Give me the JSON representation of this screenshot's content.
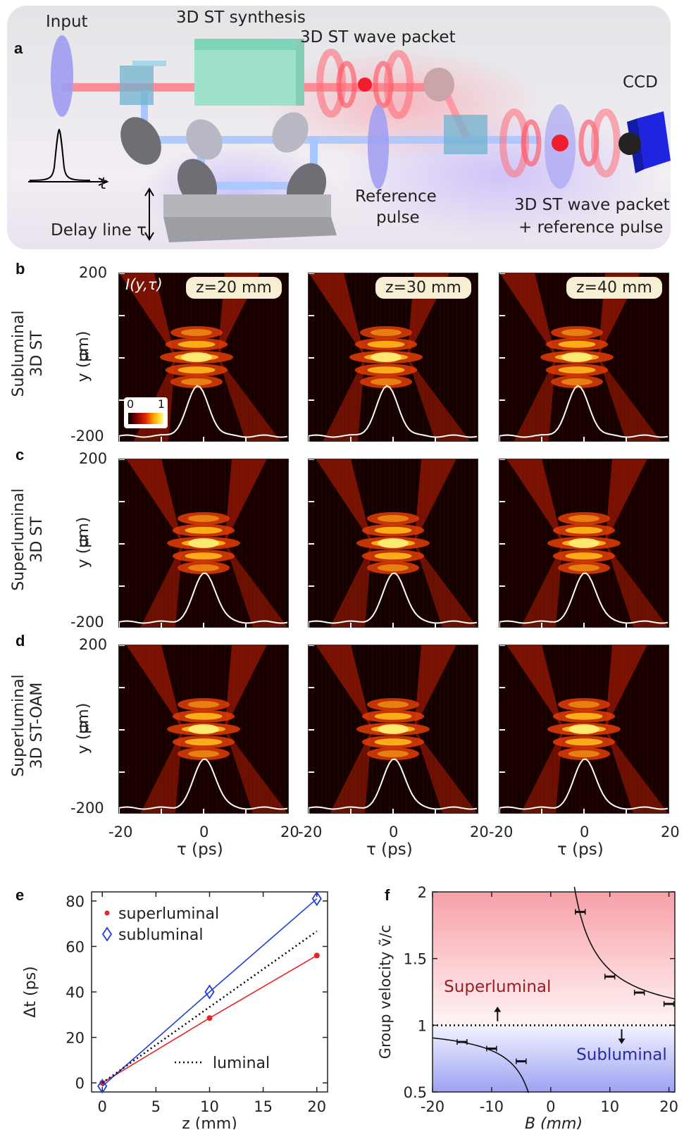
{
  "panel_a": {
    "label": "a",
    "input": "Input",
    "synthesis": "3D ST synthesis",
    "wave_packet": "3D ST wave packet",
    "ccd": "CCD",
    "t_axis": "t",
    "delay_line": "Delay line τ",
    "reference_pulse_line1": "Reference",
    "reference_pulse_line2": "pulse",
    "combined_line1": "3D ST wave packet",
    "combined_line2": "+ reference pulse"
  },
  "maps": {
    "intensity_label": "I(y,τ)",
    "colorbar_min": "0",
    "colorbar_max": "1",
    "z_labels": [
      "z=20 mm",
      "z=30 mm",
      "z=40 mm"
    ],
    "y_axis_label": "y (μm)",
    "x_axis_label": "τ (ps)",
    "y_ticks": [
      "200",
      "0",
      "-200"
    ],
    "x_ticks": [
      "-20",
      "0",
      "20"
    ],
    "rows": [
      {
        "label": "b",
        "line1": "Subluminal",
        "line2": "3D ST"
      },
      {
        "label": "c",
        "line1": "Superluminal",
        "line2": "3D ST"
      },
      {
        "label": "d",
        "line1": "Superluminal",
        "line2": "3D ST-OAM"
      }
    ]
  },
  "chart_data": [
    {
      "type": "line",
      "panel": "e",
      "xlabel": "z (mm)",
      "ylabel": "Δt (ps)",
      "xlim": [
        -1,
        21
      ],
      "ylim": [
        -4,
        84
      ],
      "x_ticks": [
        0,
        5,
        10,
        15,
        20
      ],
      "y_ticks": [
        0,
        20,
        40,
        60,
        80
      ],
      "series": [
        {
          "name": "superluminal",
          "marker": "dot",
          "color": "#e8232a",
          "x": [
            0,
            10,
            20
          ],
          "y": [
            0,
            28.5,
            56
          ]
        },
        {
          "name": "subluminal",
          "marker": "diamond",
          "color": "#1f3fd6",
          "x": [
            0,
            10,
            20
          ],
          "y": [
            -1.5,
            40,
            81
          ]
        },
        {
          "name": "luminal",
          "style": "dotted",
          "color": "#000000",
          "x": [
            0,
            20
          ],
          "y": [
            0,
            66.7
          ]
        }
      ]
    },
    {
      "type": "scatter",
      "panel": "f",
      "xlabel": "B (mm)",
      "ylabel": "Group velocity ṽ/c",
      "xlim": [
        -20,
        21
      ],
      "ylim": [
        0.5,
        2
      ],
      "x_ticks": [
        -20,
        -10,
        0,
        10,
        20
      ],
      "y_ticks": [
        0.5,
        1,
        1.5,
        2
      ],
      "region_labels": [
        "Superluminal",
        "Subluminal"
      ],
      "points": [
        {
          "x": -15,
          "y": 0.875
        },
        {
          "x": -10,
          "y": 0.825
        },
        {
          "x": -5,
          "y": 0.73
        },
        {
          "x": 5,
          "y": 1.85
        },
        {
          "x": 10,
          "y": 1.365
        },
        {
          "x": 15,
          "y": 1.245
        },
        {
          "x": 20,
          "y": 1.16
        }
      ],
      "reference_line_y": 1
    }
  ]
}
